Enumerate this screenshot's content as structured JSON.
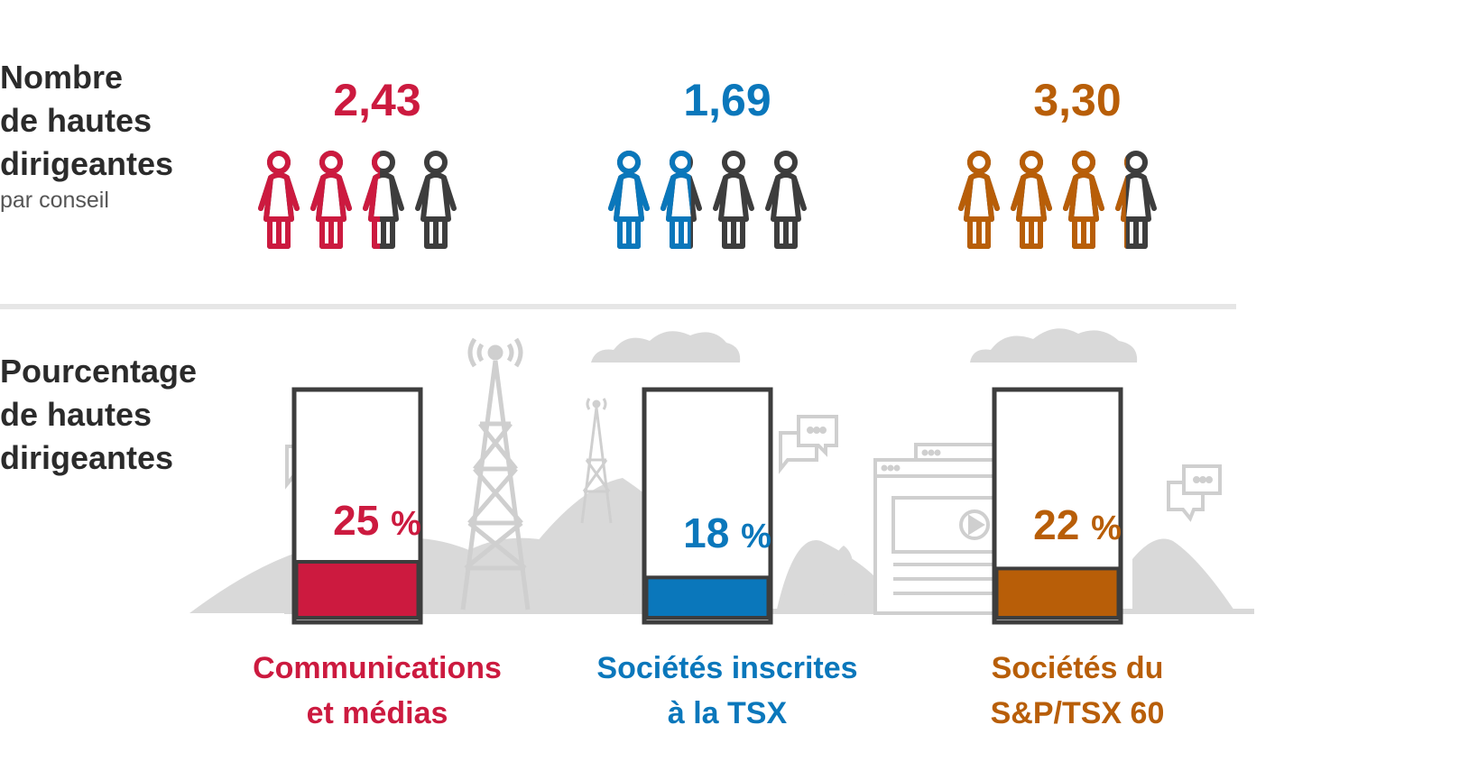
{
  "section1": {
    "title_lines": [
      "Nombre",
      "de hautes",
      "dirigeantes"
    ],
    "subtitle": "par conseil"
  },
  "section2": {
    "title_lines": [
      "Pourcentage",
      "de hautes",
      "dirigeantes"
    ]
  },
  "colors": {
    "communications": "#cc1a3f",
    "tsx": "#0a77bb",
    "sp": "#b85e08",
    "neutral": "#3d3d3d",
    "scenery": "#cfcfcf"
  },
  "chart_data": [
    {
      "type": "icon-array",
      "title": "Nombre de hautes dirigeantes par conseil",
      "icons_total": 4,
      "categories": [
        "Communications et médias",
        "Sociétés inscrites à la TSX",
        "Sociétés du S&P/TSX 60"
      ],
      "values": [
        2.43,
        1.69,
        3.3
      ],
      "value_labels": [
        "2,43",
        "1,69",
        "3,30"
      ]
    },
    {
      "type": "bar",
      "title": "Pourcentage de hautes dirigeantes",
      "categories": [
        "Communications et médias",
        "Sociétés inscrites à la TSX",
        "Sociétés du S&P/TSX 60"
      ],
      "values": [
        25,
        18,
        22
      ],
      "value_labels": [
        "25",
        "18",
        "22"
      ],
      "unit": "%",
      "ylim": [
        0,
        100
      ]
    }
  ],
  "groups": [
    {
      "key": "communications",
      "value_label": "2,43",
      "pct_label": "25",
      "label_lines": [
        "Communications",
        "et médias"
      ]
    },
    {
      "key": "tsx",
      "value_label": "1,69",
      "pct_label": "18",
      "label_lines": [
        "Sociétés inscrites",
        "à la TSX"
      ]
    },
    {
      "key": "sp",
      "value_label": "3,30",
      "pct_label": "22",
      "label_lines": [
        "Sociétés du",
        "S&P/TSX 60"
      ]
    }
  ],
  "pct_unit": "%"
}
